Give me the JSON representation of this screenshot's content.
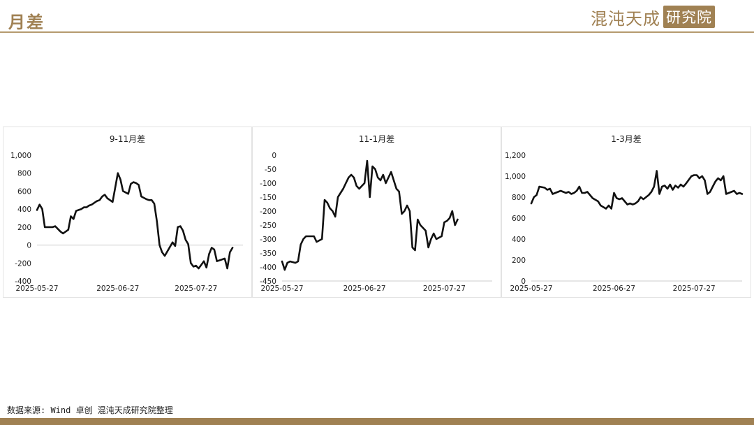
{
  "header": {
    "title": "月差",
    "logo_text": "混沌天成",
    "logo_stamp": "研究院"
  },
  "footer": {
    "source": "数据来源: Wind 卓创 混沌天成研究院整理"
  },
  "colors": {
    "accent": "#a08153",
    "line": "#111111",
    "axis": "#cccccc"
  },
  "chart_data": [
    {
      "type": "line",
      "title": "9-11月差",
      "ylim": [
        -400,
        1000
      ],
      "yticks": [
        -400,
        -200,
        0,
        200,
        400,
        600,
        800,
        1000
      ],
      "ytick_labels": [
        "-400",
        "-200",
        "0",
        "200",
        "400",
        "600",
        "800",
        "1,000"
      ],
      "xtick_labels": [
        "2025-05-27",
        "2025-06-27",
        "2025-07-27"
      ],
      "xtick_values": [
        0,
        31,
        61
      ],
      "xlim": [
        0,
        79
      ],
      "grid": false,
      "series": [
        {
          "x": [
            0,
            1,
            2,
            3,
            4,
            6,
            7,
            9,
            10,
            11,
            12,
            13,
            14,
            15,
            16,
            17,
            18,
            19,
            20,
            21,
            22,
            23,
            24,
            25,
            26,
            27,
            29,
            31,
            32,
            33,
            35,
            36,
            37,
            38,
            39,
            40,
            42,
            43,
            44,
            45,
            46,
            47,
            48,
            49,
            52,
            53,
            54,
            55,
            56,
            57,
            58,
            59,
            60,
            61,
            62,
            63,
            64,
            65,
            66,
            67,
            68,
            69,
            72,
            73,
            74,
            75
          ],
          "y": [
            390,
            450,
            400,
            200,
            200,
            200,
            210,
            150,
            130,
            150,
            170,
            320,
            290,
            380,
            390,
            400,
            420,
            420,
            440,
            450,
            470,
            490,
            500,
            540,
            560,
            520,
            480,
            800,
            730,
            600,
            570,
            680,
            700,
            690,
            670,
            540,
            510,
            500,
            500,
            460,
            260,
            0,
            -80,
            -120,
            30,
            -10,
            200,
            210,
            160,
            60,
            10,
            -200,
            -240,
            -230,
            -260,
            -220,
            -180,
            -250,
            -100,
            -30,
            -50,
            -180,
            -150,
            -260,
            -80,
            -30
          ]
        }
      ]
    },
    {
      "type": "line",
      "title": "11-1月差",
      "ylim": [
        -450,
        0
      ],
      "yticks": [
        -450,
        -400,
        -350,
        -300,
        -250,
        -200,
        -150,
        -100,
        -50,
        0
      ],
      "ytick_labels": [
        "-450",
        "-400",
        "-350",
        "-300",
        "-250",
        "-200",
        "-150",
        "-100",
        "-50",
        "0"
      ],
      "xtick_labels": [
        "2025-05-27",
        "2025-06-27",
        "2025-07-27"
      ],
      "xtick_values": [
        0,
        31,
        61
      ],
      "xlim": [
        0,
        79
      ],
      "grid": false,
      "series": [
        {
          "x": [
            0,
            1,
            2,
            3,
            5,
            6,
            7,
            8,
            9,
            10,
            12,
            13,
            15,
            16,
            17,
            18,
            19,
            20,
            21,
            23,
            24,
            25,
            26,
            27,
            28,
            29,
            30,
            31,
            32,
            33,
            34,
            35,
            36,
            37,
            38,
            39,
            40,
            41,
            42,
            43,
            44,
            45,
            46,
            47,
            48,
            49,
            50,
            51,
            52,
            53,
            54,
            55,
            56,
            57,
            58,
            60,
            61,
            62,
            63,
            64,
            65,
            66
          ],
          "y": [
            -380,
            -410,
            -385,
            -380,
            -385,
            -380,
            -320,
            -300,
            -290,
            -290,
            -290,
            -310,
            -300,
            -160,
            -170,
            -190,
            -200,
            -220,
            -150,
            -120,
            -100,
            -80,
            -70,
            -80,
            -110,
            -120,
            -110,
            -100,
            -20,
            -150,
            -40,
            -50,
            -80,
            -90,
            -70,
            -100,
            -80,
            -60,
            -90,
            -120,
            -130,
            -210,
            -200,
            -180,
            -200,
            -330,
            -340,
            -230,
            -250,
            -260,
            -270,
            -330,
            -300,
            -280,
            -300,
            -290,
            -240,
            -235,
            -225,
            -200,
            -250,
            -230
          ]
        }
      ]
    },
    {
      "type": "line",
      "title": "1-3月差",
      "ylim": [
        0,
        1200
      ],
      "yticks": [
        0,
        200,
        400,
        600,
        800,
        1000,
        1200
      ],
      "ytick_labels": [
        "0",
        "200",
        "400",
        "600",
        "800",
        "1,000",
        "1,200"
      ],
      "xtick_labels": [
        "2025-05-27",
        "2025-06-27",
        "2025-07-27"
      ],
      "xtick_values": [
        0,
        31,
        61
      ],
      "xlim": [
        0,
        79
      ],
      "grid": false,
      "series": [
        {
          "x": [
            0,
            1,
            2,
            3,
            5,
            6,
            7,
            8,
            10,
            11,
            13,
            14,
            15,
            16,
            17,
            18,
            19,
            20,
            21,
            22,
            23,
            25,
            26,
            28,
            29,
            30,
            31,
            32,
            33,
            34,
            35,
            36,
            37,
            38,
            39,
            40,
            41,
            42,
            43,
            44,
            45,
            46,
            47,
            48,
            49,
            50,
            51,
            52,
            53,
            54,
            55,
            56,
            57,
            58,
            60,
            61,
            62,
            63,
            64,
            65,
            66,
            67,
            68,
            69,
            70,
            71,
            72,
            73,
            74,
            75,
            76,
            77,
            78,
            79
          ],
          "y": [
            740,
            800,
            820,
            900,
            890,
            870,
            880,
            830,
            850,
            860,
            840,
            850,
            830,
            840,
            860,
            900,
            840,
            840,
            850,
            820,
            790,
            760,
            720,
            690,
            720,
            690,
            840,
            790,
            780,
            790,
            760,
            730,
            740,
            730,
            740,
            760,
            800,
            780,
            800,
            820,
            850,
            900,
            1050,
            830,
            900,
            910,
            880,
            920,
            870,
            910,
            890,
            920,
            900,
            930,
            1000,
            1010,
            1010,
            980,
            1000,
            960,
            830,
            850,
            900,
            950,
            980,
            960,
            1000,
            830,
            840,
            850,
            860,
            830,
            840,
            830
          ]
        }
      ]
    }
  ]
}
